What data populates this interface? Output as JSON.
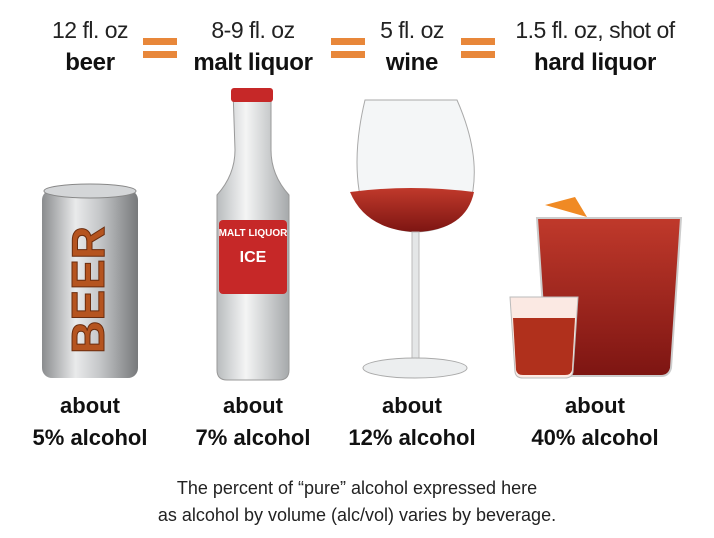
{
  "items": [
    {
      "amount": "12 fl. oz",
      "name": "beer",
      "about": "about",
      "alcohol": "5% alcohol"
    },
    {
      "amount": "8-9 fl. oz",
      "name": "malt liquor",
      "about": "about",
      "alcohol": "7% alcohol"
    },
    {
      "amount": "5 fl. oz",
      "name": "wine",
      "about": "about",
      "alcohol": "12% alcohol"
    },
    {
      "amount": "1.5 fl. oz, shot of",
      "name": "hard liquor",
      "about": "about",
      "alcohol": "40% alcohol"
    }
  ],
  "can_label": "BEER",
  "bottle_label": [
    "MALT LIQUOR",
    "ICE"
  ],
  "footnote": [
    "The percent of “pure” alcohol expressed here",
    "as alcohol by volume (alc/vol) varies by beverage."
  ]
}
